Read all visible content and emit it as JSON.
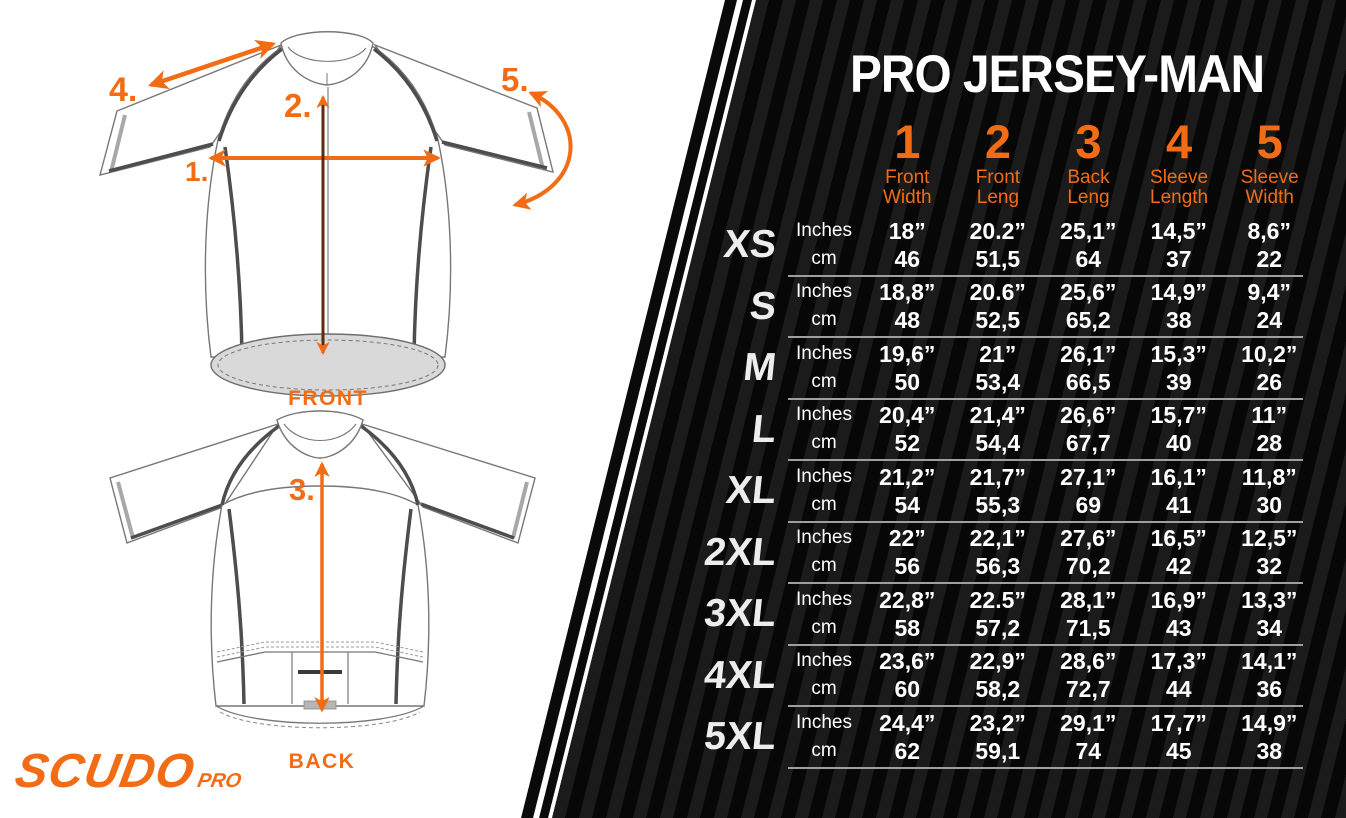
{
  "brand": {
    "name": "SCUDO",
    "suffix": "PRO"
  },
  "colors": {
    "accent": "#f26c15",
    "panel": "#070707",
    "stripe": "#1b1b1b",
    "divider": "#9f9f9f",
    "text": "#ffffff",
    "hem": "#d9d9d9",
    "arrow_line_dark": "#5f2b10"
  },
  "diagram": {
    "front_caption": "FRONT",
    "back_caption": "BACK",
    "labels": {
      "m1": "1.",
      "m2": "2.",
      "m3": "3.",
      "m4": "4.",
      "m5": "5."
    }
  },
  "table": {
    "title": "PRO JERSEY-MAN",
    "unit_labels": {
      "inches": "Inches",
      "cm": "cm"
    },
    "columns": [
      {
        "num": "1",
        "label_lines": [
          "Front",
          "Width"
        ]
      },
      {
        "num": "2",
        "label_lines": [
          "Front",
          "Leng"
        ]
      },
      {
        "num": "3",
        "label_lines": [
          "Back",
          "Leng"
        ]
      },
      {
        "num": "4",
        "label_lines": [
          "Sleeve",
          "Length"
        ]
      },
      {
        "num": "5",
        "label_lines": [
          "Sleeve",
          "Width"
        ]
      }
    ],
    "rows": [
      {
        "size": "XS",
        "inches": [
          "18”",
          "20.2”",
          "25,1”",
          "14,5”",
          "8,6”"
        ],
        "cm": [
          "46",
          "51,5",
          "64",
          "37",
          "22"
        ]
      },
      {
        "size": "S",
        "inches": [
          "18,8”",
          "20.6”",
          "25,6”",
          "14,9”",
          "9,4”"
        ],
        "cm": [
          "48",
          "52,5",
          "65,2",
          "38",
          "24"
        ]
      },
      {
        "size": "M",
        "inches": [
          "19,6”",
          "21”",
          "26,1”",
          "15,3”",
          "10,2”"
        ],
        "cm": [
          "50",
          "53,4",
          "66,5",
          "39",
          "26"
        ]
      },
      {
        "size": "L",
        "inches": [
          "20,4”",
          "21,4”",
          "26,6”",
          "15,7”",
          "11”"
        ],
        "cm": [
          "52",
          "54,4",
          "67,7",
          "40",
          "28"
        ]
      },
      {
        "size": "XL",
        "inches": [
          "21,2”",
          "21,7”",
          "27,1”",
          "16,1”",
          "11,8”"
        ],
        "cm": [
          "54",
          "55,3",
          "69",
          "41",
          "30"
        ]
      },
      {
        "size": "2XL",
        "inches": [
          "22”",
          "22,1”",
          "27,6”",
          "16,5”",
          "12,5”"
        ],
        "cm": [
          "56",
          "56,3",
          "70,2",
          "42",
          "32"
        ]
      },
      {
        "size": "3XL",
        "inches": [
          "22,8”",
          "22.5”",
          "28,1”",
          "16,9”",
          "13,3”"
        ],
        "cm": [
          "58",
          "57,2",
          "71,5",
          "43",
          "34"
        ]
      },
      {
        "size": "4XL",
        "inches": [
          "23,6”",
          "22,9”",
          "28,6”",
          "17,3”",
          "14,1”"
        ],
        "cm": [
          "60",
          "58,2",
          "72,7",
          "44",
          "36"
        ]
      },
      {
        "size": "5XL",
        "inches": [
          "24,4”",
          "23,2”",
          "29,1”",
          "17,7”",
          "14,9”"
        ],
        "cm": [
          "62",
          "59,1",
          "74",
          "45",
          "38"
        ]
      }
    ]
  }
}
